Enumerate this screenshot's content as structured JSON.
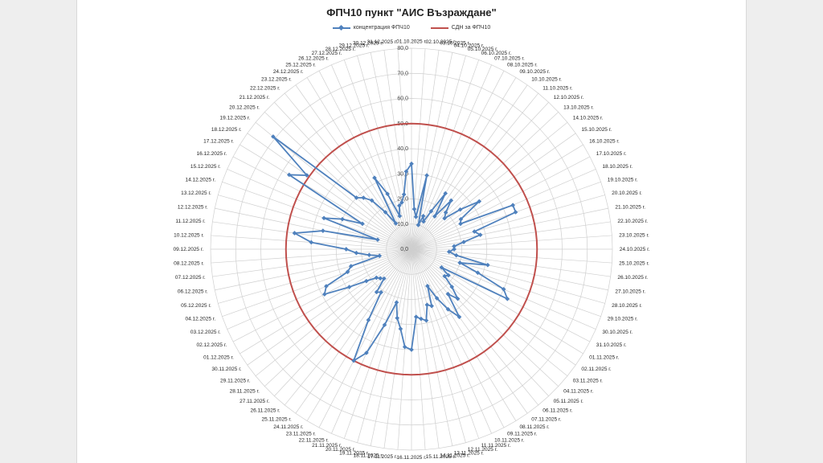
{
  "chart_data": {
    "type": "radar",
    "title": "ФПЧ10 пункт \"АИС Възраждане\"",
    "r_range": [
      0,
      80
    ],
    "r_step": 10,
    "r_tick_labels": [
      "0,0",
      "10,0",
      "20,0",
      "30,0",
      "40,0",
      "50,0",
      "60,0",
      "70,0",
      "80,0"
    ],
    "categories": [
      "01.10.2025 г.",
      "02.10.2025 г.",
      "03.10.2025 г.",
      "04.10.2025 г.",
      "05.10.2025 г.",
      "06.10.2025 г.",
      "07.10.2025 г.",
      "08.10.2025 г.",
      "09.10.2025 г.",
      "10.10.2025 г.",
      "11.10.2025 г.",
      "12.10.2025 г.",
      "13.10.2025 г.",
      "14.10.2025 г.",
      "15.10.2025 г.",
      "16.10.2025 г.",
      "17.10.2025 г.",
      "18.10.2025 г.",
      "19.10.2025 г.",
      "20.10.2025 г.",
      "21.10.2025 г.",
      "22.10.2025 г.",
      "23.10.2025 г.",
      "24.10.2025 г.",
      "25.10.2025 г.",
      "26.10.2025 г.",
      "27.10.2025 г.",
      "28.10.2025 г.",
      "29.10.2025 г.",
      "30.10.2025 г.",
      "31.10.2025 г.",
      "01.11.2025 г.",
      "02.11.2025 г.",
      "03.11.2025 г.",
      "04.11.2025 г.",
      "05.11.2025 г.",
      "06.11.2025 г.",
      "07.11.2025 г.",
      "08.11.2025 г.",
      "09.11.2025 г.",
      "10.11.2025 г.",
      "11.11.2025 г.",
      "12.11.2025 г.",
      "13.11.2025 г.",
      "14.11.2025 г.",
      "15.11.2025 г.",
      "16.11.2025 г.",
      "17.11.2025 г.",
      "18.11.2025 г.",
      "19.11.2025 г.",
      "20.11.2025 г.",
      "21.11.2025 г.",
      "22.11.2025 г.",
      "23.11.2025 г.",
      "24.11.2025 г.",
      "25.11.2025 г.",
      "26.11.2025 г.",
      "27.11.2025 г.",
      "28.11.2025 г.",
      "29.11.2025 г.",
      "30.11.2025 г.",
      "01.12.2025 г.",
      "02.12.2025 г.",
      "03.12.2025 г.",
      "04.12.2025 г.",
      "05.12.2025 г.",
      "06.12.2025 г.",
      "07.12.2025 г.",
      "08.12.2025 г.",
      "09.12.2025 г.",
      "10.12.2025 г.",
      "11.12.2025 г.",
      "12.12.2025 г.",
      "13.12.2025 г.",
      "14.12.2025 г.",
      "15.12.2025 г.",
      "16.12.2025 г.",
      "17.12.2025 г.",
      "18.12.2025 г.",
      "19.12.2025 г.",
      "20.12.2025 г.",
      "21.12.2025 г.",
      "22.12.2025 г.",
      "23.12.2025 г.",
      "24.12.2025 г.",
      "25.12.2025 г.",
      "26.12.2025 г.",
      "27.12.2025 г.",
      "28.12.2025 г.",
      "29.12.2025 г.",
      "30.12.2025 г.",
      "31.12.2025 г."
    ],
    "series": [
      {
        "name": "концентрация ФПЧ10",
        "color": "#4f81bd",
        "values": [
          34,
          16,
          13,
          30,
          10,
          14,
          12,
          17,
          26,
          16,
          25,
          20,
          18,
          25,
          33,
          23,
          22,
          44,
          44,
          26,
          28,
          21,
          17,
          17,
          15,
          18,
          31,
          20,
          28,
          40,
          43,
          14,
          18,
          17,
          22,
          27,
          23,
          33,
          28,
          22,
          16,
          24,
          23,
          29,
          28,
          27,
          40,
          39,
          32,
          28,
          22,
          32,
          45,
          50,
          33,
          21,
          22,
          16,
          17,
          18,
          22,
          29,
          39,
          37,
          27,
          25,
          13,
          17,
          22,
          26,
          40,
          47,
          36,
          14,
          37,
          30,
          22,
          57,
          51,
          71,
          30,
          28,
          25,
          18,
          12,
          32,
          24,
          14,
          18,
          19,
          22,
          31
        ]
      },
      {
        "name": "СДН за ФПЧ10",
        "color": "#c0504d",
        "constant": 50
      }
    ]
  }
}
